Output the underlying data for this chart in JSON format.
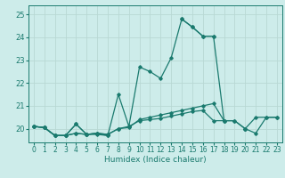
{
  "xlabel": "Humidex (Indice chaleur)",
  "background_color": "#cdecea",
  "grid_color": "#b8d8d4",
  "line_color": "#1a7a6e",
  "xlim": [
    -0.5,
    23.5
  ],
  "ylim": [
    19.4,
    25.4
  ],
  "xticks": [
    0,
    1,
    2,
    3,
    4,
    5,
    6,
    7,
    8,
    9,
    10,
    11,
    12,
    13,
    14,
    15,
    16,
    17,
    18,
    19,
    20,
    21,
    22,
    23
  ],
  "yticks": [
    20,
    21,
    22,
    23,
    24,
    25
  ],
  "series": [
    {
      "x": [
        0,
        1,
        2,
        3,
        4,
        5,
        6,
        7,
        8,
        9,
        10,
        11,
        12,
        13,
        14,
        15,
        16,
        17,
        18,
        19,
        20,
        21,
        22,
        23
      ],
      "y": [
        20.1,
        20.05,
        19.7,
        19.7,
        20.2,
        19.75,
        19.75,
        19.7,
        null,
        null,
        null,
        null,
        null,
        null,
        24.8,
        24.45,
        24.05,
        24.05,
        null,
        null,
        null,
        null,
        null,
        null
      ]
    },
    {
      "x": [
        0,
        1,
        2,
        3,
        4,
        5,
        6,
        7,
        8,
        9,
        10,
        11,
        12,
        13,
        14,
        15,
        16,
        17,
        18,
        19,
        20,
        21,
        22,
        23
      ],
      "y": [
        20.1,
        20.05,
        19.7,
        19.7,
        19.8,
        19.75,
        19.8,
        19.75,
        20.0,
        20.05,
        20.4,
        20.5,
        20.6,
        20.7,
        20.8,
        20.9,
        21.0,
        21.1,
        20.35,
        20.35,
        20.0,
        19.8,
        20.5,
        20.5
      ]
    },
    {
      "x": [
        0,
        1,
        2,
        3,
        4,
        5,
        6,
        7,
        8,
        9,
        10,
        11,
        12,
        13,
        14,
        15,
        16,
        17,
        18,
        19,
        20,
        21,
        22,
        23
      ],
      "y": [
        20.1,
        20.05,
        19.7,
        19.7,
        19.8,
        19.75,
        19.8,
        19.75,
        20.0,
        20.1,
        20.35,
        20.4,
        20.45,
        20.55,
        20.65,
        20.75,
        20.8,
        20.35,
        20.35,
        20.35,
        20.0,
        20.5,
        20.5,
        20.5
      ]
    },
    {
      "x": [
        0,
        1,
        2,
        3,
        4,
        5,
        6,
        7,
        8,
        9,
        10,
        11,
        12,
        13,
        14,
        15,
        16,
        17,
        18,
        19,
        20,
        21,
        22,
        23
      ],
      "y": [
        20.1,
        20.05,
        19.7,
        19.7,
        20.2,
        19.75,
        19.8,
        19.7,
        21.5,
        20.1,
        22.7,
        22.5,
        22.2,
        23.1,
        24.8,
        24.45,
        24.05,
        24.05,
        20.35,
        null,
        20.0,
        null,
        null,
        null
      ]
    }
  ]
}
